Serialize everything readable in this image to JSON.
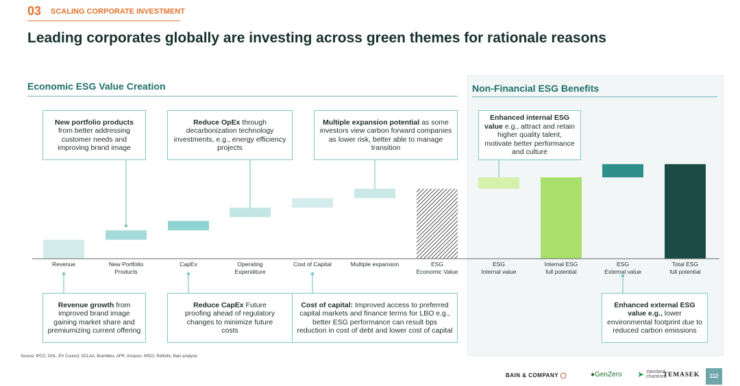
{
  "section": {
    "number": "03",
    "label": "SCALING CORPORATE INVESTMENT"
  },
  "title": "Leading corporates globally are investing across green themes for rationale reasons",
  "left_heading": "Economic ESG Value Creation",
  "right_heading": "Non-Financial ESG Benefits",
  "callouts": {
    "portfolio": {
      "bold": "New portfolio products",
      "text": " from better addressing customer needs and improving brand image"
    },
    "opex": {
      "bold": "Reduce OpEx",
      "text": " through decarbonization technology investments, e.g., energy efficiency projects"
    },
    "multiple": {
      "bold": "Multiple expansion potential",
      "text": " as some investors view carbon forward companies as lower risk, better able to manage transition"
    },
    "internal": {
      "bold": "Enhanced internal ESG value",
      "text": " e.g., attract and retain higher quality talent, motivate better performance and culture"
    },
    "revenue": {
      "bold": "Revenue growth",
      "text": " from improved brand image gaining market share and premiumizing current offering"
    },
    "capex": {
      "bold": "Reduce CapEx",
      "text": " Future proofing ahead of regulatory changes to minimize future costs"
    },
    "costcap": {
      "bold": "Cost of capital:",
      "text": " Improved access to preferred capital markets and finance terms for LBO e.g., better ESG performance can result bps reduction in cost of debt and lower cost of capital"
    },
    "external": {
      "bold": "Enhanced external ESG value e.g.,",
      "text": " lower environmental footprint due to reduced carbon emissions"
    }
  },
  "chart_data": {
    "type": "bar",
    "subtype": "waterfall",
    "categories": [
      "Revenue",
      "New Portfolio\nProducts",
      "CapEx",
      "Operating\nExpenditure",
      "Cost of Capital",
      "Multiple expansion",
      "ESG\nEconomic Value",
      "ESG\nInternal value",
      "Internal ESG\nfull potential",
      "ESG\nExternal value",
      "Total ESG\nfull potential"
    ],
    "bars": [
      {
        "bottom": 0,
        "top": 1.0,
        "color": "#d4eceb",
        "style": "solid"
      },
      {
        "bottom": 1.0,
        "top": 1.5,
        "color": "#a7dbd9",
        "style": "solid"
      },
      {
        "bottom": 1.5,
        "top": 2.0,
        "color": "#8fd3d1",
        "style": "solid"
      },
      {
        "bottom": 2.2,
        "top": 2.7,
        "color": "#c2e6e4",
        "style": "solid"
      },
      {
        "bottom": 2.7,
        "top": 3.2,
        "color": "#d4eceb",
        "style": "solid"
      },
      {
        "bottom": 3.2,
        "top": 3.7,
        "color": "#c9e8e6",
        "style": "solid"
      },
      {
        "bottom": 0,
        "top": 3.7,
        "color": "#222222",
        "style": "hatched"
      },
      {
        "bottom": 3.7,
        "top": 4.3,
        "color": "#d6f0ae",
        "style": "solid"
      },
      {
        "bottom": 0,
        "top": 4.3,
        "color": "#a8e06b",
        "style": "solid"
      },
      {
        "bottom": 4.3,
        "top": 5.0,
        "color": "#2f8f8b",
        "style": "solid"
      },
      {
        "bottom": 0,
        "top": 5.0,
        "color": "#1b4a44",
        "style": "solid"
      }
    ],
    "ylim": [
      0,
      5.5
    ],
    "grid": false
  },
  "footer": {
    "source": "Source: IPCC, DHL, EV Council, SCLAA, Brambles, AFR, Amazon, MSCI, Refinitiv, Bain analysis",
    "bain": "BAIN & COMPANY",
    "genzero": "GenZero",
    "sc_line1": "standard",
    "sc_line2": "chartered",
    "temasek": "TEMASEK",
    "page": "112"
  },
  "colors": {
    "accent_orange": "#e0732b",
    "teal_heading": "#1f6f6a",
    "connector": "#7fc7c4"
  }
}
